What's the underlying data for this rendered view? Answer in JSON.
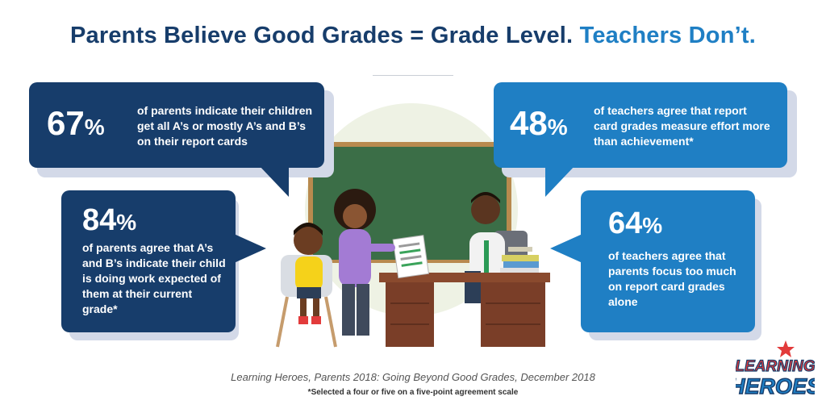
{
  "title": {
    "main": "Parents Believe Good Grades = Grade Level.",
    "accent": "Teachers Don’t."
  },
  "stats": [
    {
      "number": "67",
      "sign": "%",
      "text": "of parents indicate their children get all A’s or mostly A’s and B’s on their report cards"
    },
    {
      "number": "84",
      "sign": "%",
      "text": "of parents agree that A’s and B’s indicate their child is doing work expected of them at their current grade*"
    },
    {
      "number": "48",
      "sign": "%",
      "text": "of teachers agree that report card grades measure effort more than achievement*"
    },
    {
      "number": "64",
      "sign": "%",
      "text": "of teachers agree that parents focus too much on report card grades alone"
    }
  ],
  "source": "Learning Heroes, Parents 2018: Going Beyond Good Grades, December 2018",
  "footnote": "*Selected a four or five on a five-point agreement scale",
  "logo": {
    "line1": "LEARNING",
    "line2": "HEROES"
  },
  "colors": {
    "dark_blue": "#173d6b",
    "light_blue": "#1f7fc4",
    "logo_red": "#e23b3b"
  }
}
